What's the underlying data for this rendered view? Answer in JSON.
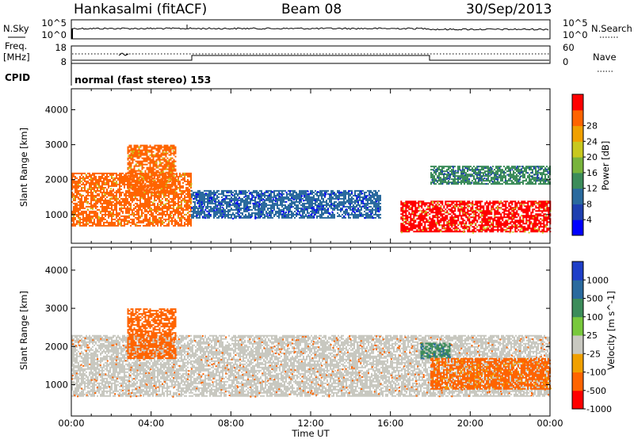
{
  "header": {
    "station": "Hankasalmi (fitACF)",
    "beam": "Beam 08",
    "date": "30/Sep/2013"
  },
  "noise_panel": {
    "left_label": "N.Sky",
    "right_label": "N.Search",
    "left_ticks": [
      "10^5",
      "10^0"
    ],
    "right_ticks": [
      "10^5",
      "10^0"
    ]
  },
  "freq_panel": {
    "left_label_line1": "Freq.",
    "left_label_line2": "[MHz]",
    "right_label": "Nave",
    "left_ticks": [
      "18",
      "8"
    ],
    "right_ticks": [
      "60",
      "0"
    ]
  },
  "cpid_panel": {
    "label": "CPID",
    "text": "normal (fast stereo) 153"
  },
  "chart_data": [
    {
      "type": "heatmap",
      "title": "Power",
      "ylabel": "Slant Range [km]",
      "xlabel": "Time UT",
      "ylim": [
        180,
        4600
      ],
      "yticks": [
        "1000",
        "2000",
        "3000",
        "4000"
      ],
      "xticks": [
        "00:00",
        "04:00",
        "08:00",
        "12:00",
        "16:00",
        "20:00",
        "00:00"
      ],
      "colorbar": {
        "label": "Power [dB]",
        "ticks": [
          "4",
          "8",
          "12",
          "16",
          "20",
          "24",
          "28"
        ],
        "colors": [
          "#0000ff",
          "#1e3fb0",
          "#2a6a9e",
          "#3c8c5a",
          "#78b43c",
          "#c8c81e",
          "#f0a000",
          "#ff6400",
          "#ff0000"
        ]
      },
      "regions": [
        {
          "name": "lower arc 00-06UT",
          "t0": 0,
          "t1": 6,
          "r0": 700,
          "r1": 2200,
          "power_db": 26
        },
        {
          "name": "arc 03-05UT",
          "t0": 2.8,
          "t1": 5.2,
          "r0": 1600,
          "r1": 3000,
          "power_db": 27
        },
        {
          "name": "band 06-15UT",
          "t0": 6,
          "t1": 15.5,
          "r0": 900,
          "r1": 1700,
          "power_db": 8
        },
        {
          "name": "low band 16-24UT",
          "t0": 16.5,
          "t1": 24,
          "r0": 500,
          "r1": 1400,
          "power_db": 29
        },
        {
          "name": "upper band 18-24UT",
          "t0": 18,
          "t1": 24,
          "r0": 1900,
          "r1": 2400,
          "power_db": 14
        }
      ]
    },
    {
      "type": "heatmap",
      "title": "Velocity",
      "ylabel": "Slant Range [km]",
      "xlabel": "Time UT",
      "ylim": [
        180,
        4600
      ],
      "yticks": [
        "1000",
        "2000",
        "3000",
        "4000"
      ],
      "xticks": [
        "00:00",
        "04:00",
        "08:00",
        "12:00",
        "16:00",
        "20:00",
        "00:00"
      ],
      "colorbar": {
        "label": "Velocity [m s^-1]",
        "ticks": [
          "1000",
          "500",
          "100",
          "25",
          "-25",
          "-100",
          "-500",
          "-1000"
        ],
        "colors": [
          "#1e3fc8",
          "#2a6a9e",
          "#3c8c5a",
          "#78c83c",
          "#c8c8c0",
          "#f0a000",
          "#ff6400",
          "#ff0000"
        ]
      },
      "regions": [
        {
          "name": "ground scatter 00-24UT",
          "t0": 0,
          "t1": 24,
          "r0": 700,
          "r1": 2300,
          "velocity": 0
        },
        {
          "name": "arc 03-05UT",
          "t0": 2.8,
          "t1": 5.2,
          "r0": 1700,
          "r1": 3000,
          "velocity": -300
        },
        {
          "name": "flow 17.5-19UT",
          "t0": 17.5,
          "t1": 19,
          "r0": 1700,
          "r1": 2100,
          "velocity": 200
        },
        {
          "name": "band 18-24UT",
          "t0": 18,
          "t1": 24,
          "r0": 900,
          "r1": 1700,
          "velocity": -200
        }
      ]
    }
  ]
}
